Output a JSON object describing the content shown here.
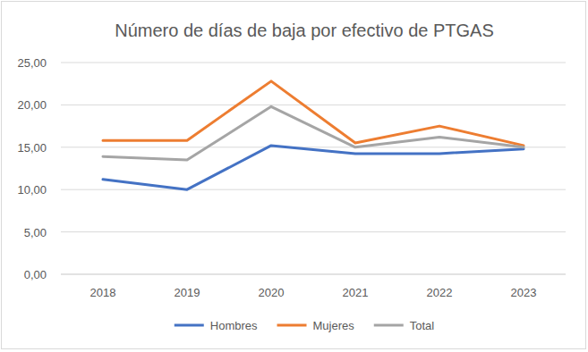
{
  "chart_data": {
    "type": "line",
    "title": "Número de días de baja por efectivo de PTGAS",
    "categories": [
      "2018",
      "2019",
      "2020",
      "2021",
      "2022",
      "2023"
    ],
    "series": [
      {
        "name": "Hombres",
        "color": "#4472c4",
        "values": [
          11.2,
          10.0,
          15.2,
          14.25,
          14.25,
          14.8
        ]
      },
      {
        "name": "Mujeres",
        "color": "#ed7d31",
        "values": [
          15.8,
          15.8,
          22.8,
          15.5,
          17.5,
          15.2
        ]
      },
      {
        "name": "Total",
        "color": "#a5a5a5",
        "values": [
          13.9,
          13.5,
          19.8,
          15.0,
          16.2,
          15.0
        ]
      }
    ],
    "ylim": [
      0,
      25
    ],
    "yticks": [
      {
        "value": 0,
        "label": "0,00"
      },
      {
        "value": 5,
        "label": "5,00"
      },
      {
        "value": 10,
        "label": "10,00"
      },
      {
        "value": 15,
        "label": "15,00"
      },
      {
        "value": 20,
        "label": "20,00"
      },
      {
        "value": 25,
        "label": "25,00"
      }
    ],
    "grid": true,
    "legend": "bottom"
  }
}
